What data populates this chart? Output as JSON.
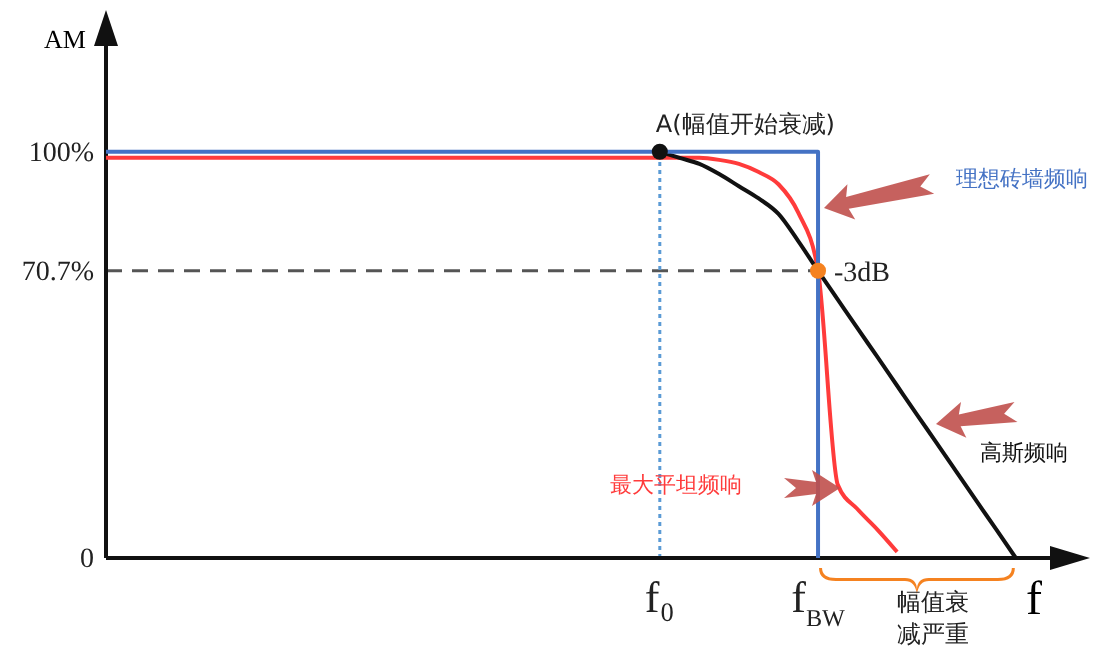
{
  "chart_data": {
    "type": "line",
    "ylabel": "AM",
    "xlabel": "f",
    "ylim": [
      0,
      128
    ],
    "categories": [
      null,
      null,
      null,
      null,
      null,
      null,
      null,
      null,
      null,
      null,
      null,
      null,
      null,
      null,
      null,
      null,
      null,
      null,
      null,
      null,
      null,
      null,
      null,
      null,
      null,
      null,
      null,
      null,
      "f₀",
      null,
      null,
      null,
      null,
      null,
      null,
      null,
      "f$_{BW}$",
      null,
      null,
      null,
      null,
      null,
      null,
      null,
      null,
      null,
      null,
      null,
      null,
      null
    ],
    "yticks": [
      0,
      {
        "value": 70.7,
        "label": "70.7%"
      },
      {
        "value": 100,
        "label": "100%"
      }
    ],
    "grid": false,
    "legend": false,
    "marker": "none",
    "line_style": "solid",
    "series": [
      {
        "name": "理想砖墙频响",
        "type": "step",
        "color": "#4472c4",
        "values": [
          100,
          100,
          100,
          100,
          100,
          100,
          100,
          100,
          100,
          100,
          100,
          100,
          100,
          100,
          100,
          100,
          100,
          100,
          100,
          100,
          100,
          100,
          100,
          100,
          100,
          100,
          100,
          100,
          100,
          100,
          100,
          100,
          100,
          100,
          100,
          100,
          0,
          null,
          null,
          null,
          null,
          null,
          null,
          null,
          null,
          null,
          null,
          null,
          null,
          null
        ]
      },
      {
        "name": "最大平坦频响",
        "color": "#ff3b3b",
        "values": [
          98.5,
          98.5,
          98.5,
          98.5,
          98.5,
          98.5,
          98.5,
          98.5,
          98.5,
          98.5,
          98.5,
          98.5,
          98.5,
          98.5,
          98.5,
          98.5,
          98.5,
          98.5,
          98.5,
          98.5,
          98.5,
          98.5,
          98.5,
          98.5,
          98.5,
          98.5,
          98.5,
          98.5,
          98.5,
          98.5,
          98.5,
          98,
          97,
          95,
          92,
          85,
          70.7,
          18,
          12,
          7,
          1.5,
          null,
          null,
          null,
          null,
          null,
          null,
          null,
          null,
          null
        ]
      },
      {
        "name": "高斯频响",
        "color": "#111111",
        "values": [
          null,
          null,
          null,
          null,
          null,
          null,
          null,
          null,
          null,
          null,
          null,
          null,
          null,
          null,
          null,
          null,
          null,
          null,
          null,
          null,
          null,
          null,
          null,
          null,
          null,
          null,
          null,
          null,
          100,
          98.5,
          97,
          94.5,
          91.5,
          88.5,
          84.7,
          78,
          70.7,
          63.6,
          56.5,
          49.5,
          42.4,
          35.3,
          28.3,
          21.2,
          14.1,
          7.1,
          0,
          null,
          null,
          null
        ]
      }
    ],
    "ref_lines": [
      {
        "axis": "y",
        "value": 70.7,
        "color": "#555555",
        "line_style": "dashed"
      },
      {
        "axis": "x",
        "value": "f₀",
        "color": "#5b9bd5",
        "line_style": "dotted"
      }
    ],
    "annotations": [
      {
        "text": "A(幅值开始衰减)",
        "x": "f₀",
        "y": 100
      },
      {
        "text": "-3dB",
        "x": "f$_{BW}$",
        "y": 70.7
      },
      "幅值衰减严重"
    ]
  }
}
